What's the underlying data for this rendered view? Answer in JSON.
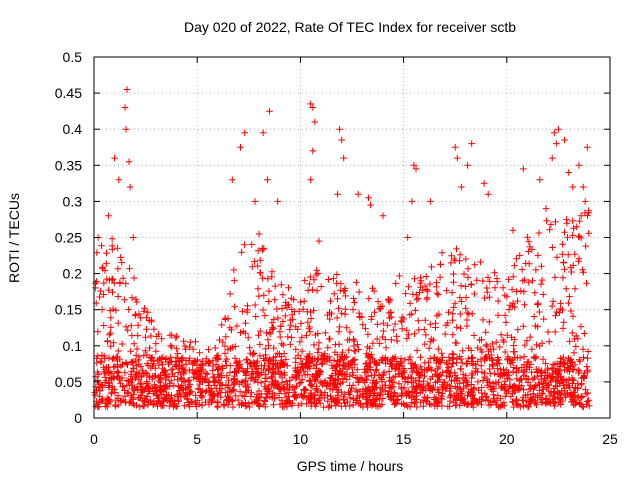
{
  "chart_data": {
    "type": "scatter",
    "title": "Day 020 of 2022, Rate Of TEC Index for receiver sctb",
    "xlabel": "GPS time / hours",
    "ylabel": "ROTI / TECUs",
    "xlim": [
      0,
      25
    ],
    "ylim": [
      0,
      0.5
    ],
    "x_ticks": [
      0,
      5,
      10,
      15,
      20,
      25
    ],
    "y_ticks": [
      0,
      0.05,
      0.1,
      0.15,
      0.2,
      0.25,
      0.3,
      0.35,
      0.4,
      0.45,
      0.5
    ],
    "x_tick_labels": [
      "0",
      "5",
      "10",
      "15",
      "20",
      "25"
    ],
    "y_tick_labels": [
      "0",
      "0.05",
      "0.1",
      "0.15",
      "0.2",
      "0.25",
      "0.3",
      "0.35",
      "0.4",
      "0.45",
      "0.5"
    ],
    "grid": true,
    "marker": "plus",
    "color": "#ff0000",
    "x_data_range": [
      0,
      24
    ],
    "envelope": {
      "hours": [
        0,
        1,
        2,
        3,
        4,
        5,
        6,
        7,
        8,
        9,
        10,
        11,
        12,
        13,
        14,
        15,
        16,
        17,
        18,
        19,
        20,
        21,
        22,
        23,
        24
      ],
      "typical_max": [
        0.22,
        0.24,
        0.18,
        0.11,
        0.1,
        0.09,
        0.09,
        0.22,
        0.24,
        0.17,
        0.18,
        0.2,
        0.18,
        0.17,
        0.16,
        0.2,
        0.19,
        0.22,
        0.23,
        0.2,
        0.18,
        0.24,
        0.26,
        0.26,
        0.28
      ]
    },
    "peaks": [
      {
        "x": 0.2,
        "y": 0.25
      },
      {
        "x": 0.7,
        "y": 0.28
      },
      {
        "x": 1.0,
        "y": 0.36
      },
      {
        "x": 1.2,
        "y": 0.33
      },
      {
        "x": 1.5,
        "y": 0.43
      },
      {
        "x": 1.6,
        "y": 0.455
      },
      {
        "x": 1.55,
        "y": 0.4
      },
      {
        "x": 1.7,
        "y": 0.355
      },
      {
        "x": 1.75,
        "y": 0.32
      },
      {
        "x": 1.9,
        "y": 0.25
      },
      {
        "x": 6.7,
        "y": 0.33
      },
      {
        "x": 7.1,
        "y": 0.375
      },
      {
        "x": 7.3,
        "y": 0.395
      },
      {
        "x": 7.8,
        "y": 0.3
      },
      {
        "x": 8.2,
        "y": 0.395
      },
      {
        "x": 8.4,
        "y": 0.33
      },
      {
        "x": 8.5,
        "y": 0.425
      },
      {
        "x": 8.9,
        "y": 0.3
      },
      {
        "x": 10.5,
        "y": 0.435
      },
      {
        "x": 10.6,
        "y": 0.43
      },
      {
        "x": 10.7,
        "y": 0.41
      },
      {
        "x": 10.5,
        "y": 0.33
      },
      {
        "x": 10.6,
        "y": 0.37
      },
      {
        "x": 10.9,
        "y": 0.245
      },
      {
        "x": 11.9,
        "y": 0.4
      },
      {
        "x": 12.0,
        "y": 0.385
      },
      {
        "x": 12.1,
        "y": 0.36
      },
      {
        "x": 11.8,
        "y": 0.31
      },
      {
        "x": 12.8,
        "y": 0.31
      },
      {
        "x": 13.3,
        "y": 0.305
      },
      {
        "x": 13.4,
        "y": 0.295
      },
      {
        "x": 14.0,
        "y": 0.28
      },
      {
        "x": 15.2,
        "y": 0.25
      },
      {
        "x": 15.5,
        "y": 0.35
      },
      {
        "x": 15.6,
        "y": 0.345
      },
      {
        "x": 15.4,
        "y": 0.3
      },
      {
        "x": 16.3,
        "y": 0.3
      },
      {
        "x": 17.5,
        "y": 0.375
      },
      {
        "x": 17.6,
        "y": 0.36
      },
      {
        "x": 18.3,
        "y": 0.38
      },
      {
        "x": 18.1,
        "y": 0.35
      },
      {
        "x": 17.8,
        "y": 0.32
      },
      {
        "x": 18.9,
        "y": 0.325
      },
      {
        "x": 19.1,
        "y": 0.31
      },
      {
        "x": 20.3,
        "y": 0.26
      },
      {
        "x": 20.8,
        "y": 0.345
      },
      {
        "x": 21.6,
        "y": 0.33
      },
      {
        "x": 21.9,
        "y": 0.29
      },
      {
        "x": 22.3,
        "y": 0.395
      },
      {
        "x": 22.4,
        "y": 0.38
      },
      {
        "x": 22.5,
        "y": 0.4
      },
      {
        "x": 22.2,
        "y": 0.36
      },
      {
        "x": 22.8,
        "y": 0.385
      },
      {
        "x": 23.0,
        "y": 0.34
      },
      {
        "x": 23.2,
        "y": 0.32
      },
      {
        "x": 23.5,
        "y": 0.35
      },
      {
        "x": 23.7,
        "y": 0.32
      },
      {
        "x": 23.9,
        "y": 0.375
      },
      {
        "x": 23.8,
        "y": 0.3
      },
      {
        "x": 23.6,
        "y": 0.28
      }
    ],
    "point_count": 2600
  }
}
